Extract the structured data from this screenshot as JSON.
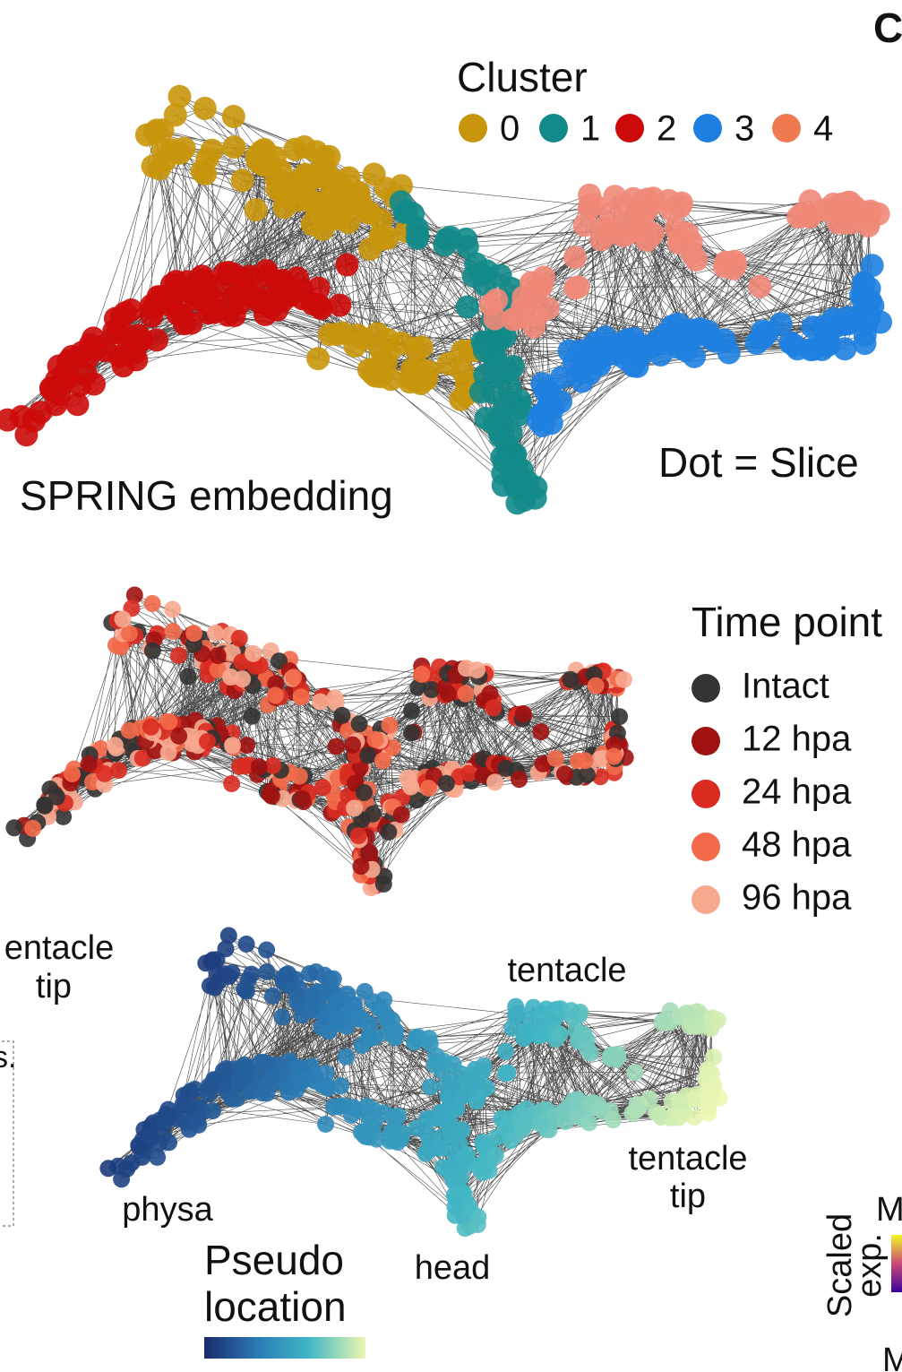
{
  "panel_letter": "C",
  "cluster_legend": {
    "title": "Cluster",
    "items": [
      {
        "label": "0",
        "color": "#c8960c"
      },
      {
        "label": "1",
        "color": "#138a8a"
      },
      {
        "label": "2",
        "color": "#cc0a0a"
      },
      {
        "label": "3",
        "color": "#1e7fe0"
      },
      {
        "label": "4",
        "color": "#f07a50"
      }
    ]
  },
  "panel1": {
    "label": "SPRING embedding",
    "note": "Dot = Slice"
  },
  "time_legend": {
    "title": "Time point",
    "items": [
      {
        "label": "Intact",
        "color": "#333333"
      },
      {
        "label": "12 hpa",
        "color": "#a01212"
      },
      {
        "label": "24 hpa",
        "color": "#d92b20"
      },
      {
        "label": "48 hpa",
        "color": "#f26a4a"
      },
      {
        "label": "96 hpa",
        "color": "#f7a98f"
      }
    ]
  },
  "side_label": [
    "entacle",
    "tip"
  ],
  "box_text": "s.",
  "panel3": {
    "tentacle": "tentacle",
    "tentacle_tip": [
      "tentacle",
      "tip"
    ],
    "physa": "physa",
    "head": "head"
  },
  "pseudo_legend": {
    "title": [
      "Pseudo",
      "location"
    ]
  },
  "scaled_legend": {
    "title": [
      "Scaled",
      "exp."
    ],
    "max": "M",
    "min": "M"
  }
}
